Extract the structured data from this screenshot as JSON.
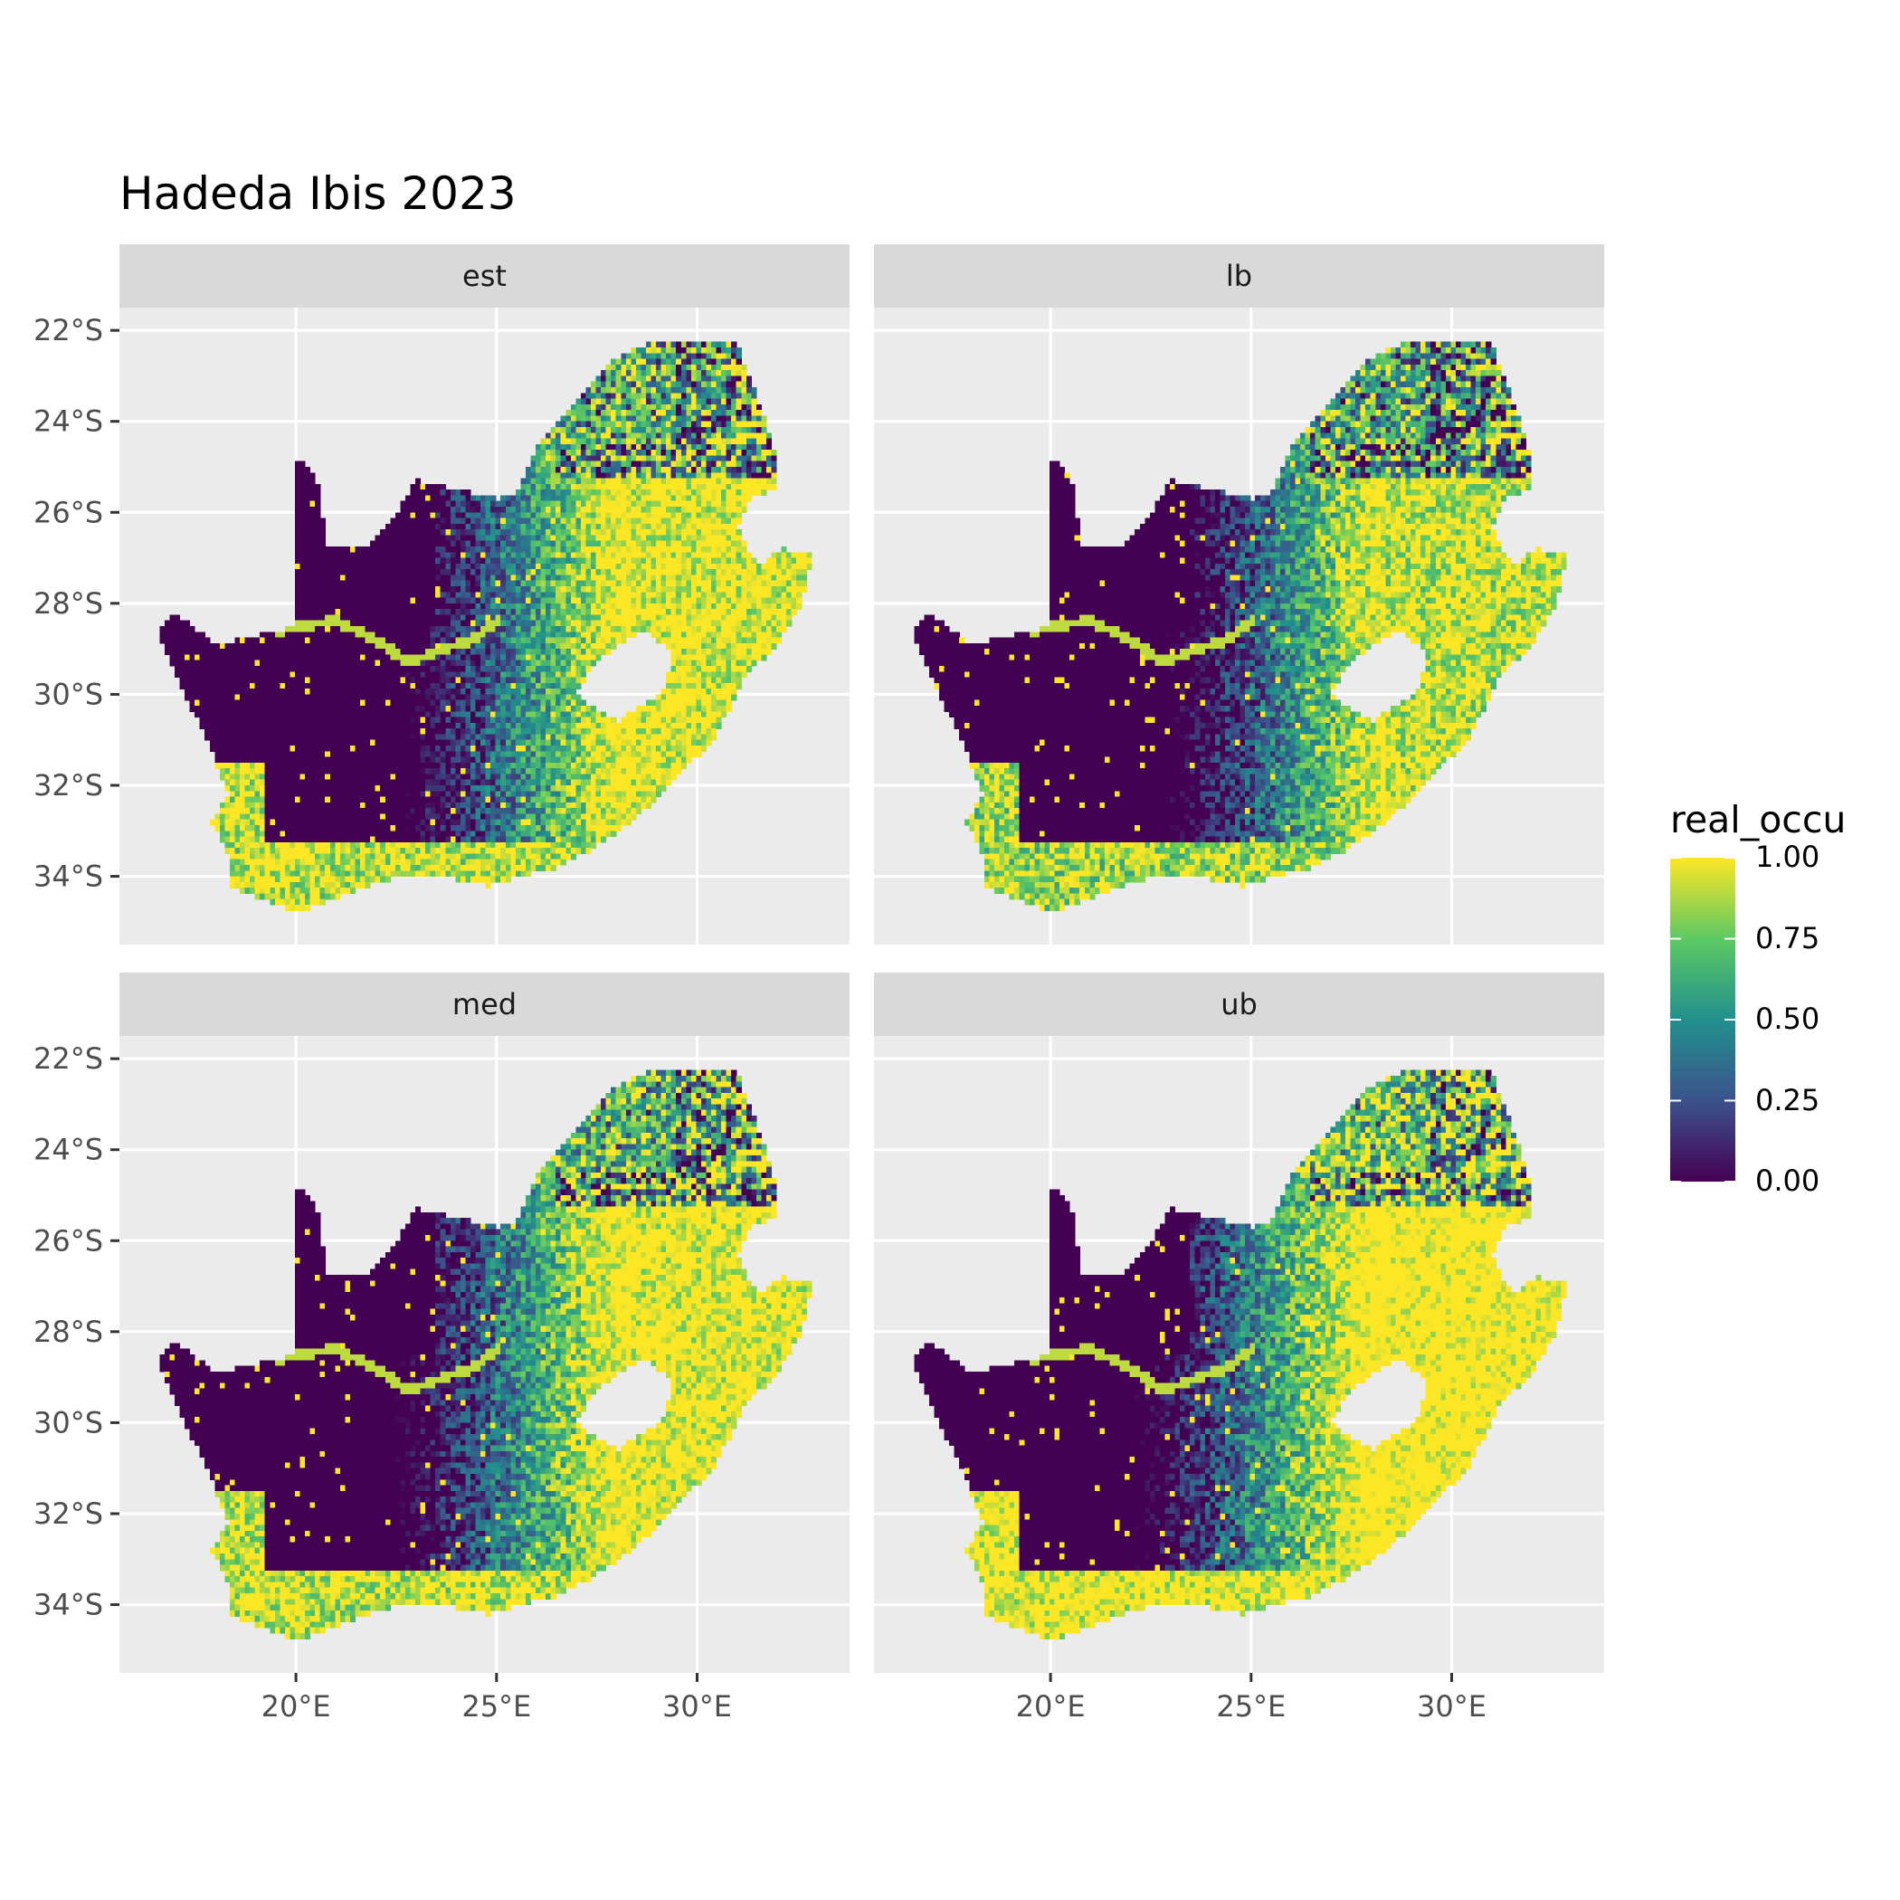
{
  "chart_data": {
    "type": "heatmap",
    "title": "Hadeda Ibis 2023",
    "facets": [
      "est",
      "lb",
      "med",
      "ub"
    ],
    "x_ticks": [
      "20°E",
      "25°E",
      "30°E"
    ],
    "y_ticks": [
      "22°S",
      "24°S",
      "26°S",
      "28°S",
      "30°S",
      "32°S",
      "34°S"
    ],
    "x_tick_values": [
      20,
      25,
      30
    ],
    "y_tick_values": [
      -22,
      -24,
      -26,
      -28,
      -30,
      -32,
      -34
    ],
    "xlim": [
      15.6,
      33.8
    ],
    "ylim": [
      -35.5,
      -21.5
    ],
    "grid": true,
    "legend": {
      "title": "real_occu",
      "position": "right",
      "labels": [
        "1.00",
        "0.75",
        "0.50",
        "0.25",
        "0.00"
      ],
      "values": [
        1.0,
        0.75,
        0.5,
        0.25,
        0.0
      ],
      "range": [
        0,
        1
      ],
      "palette": [
        "#440154",
        "#3b528b",
        "#21908d",
        "#5dc963",
        "#fde725"
      ]
    },
    "colors": {
      "panel_background": "#ebebeb",
      "strip_background": "#d9d9d9",
      "grid_line": "#ffffff",
      "axis_text": "#4d4d4d"
    },
    "map_outline": [
      [
        16.5,
        -28.6
      ],
      [
        17.0,
        -28.2
      ],
      [
        18.0,
        -28.9
      ],
      [
        19.0,
        -28.7
      ],
      [
        20.0,
        -28.5
      ],
      [
        20.0,
        -24.8
      ],
      [
        20.5,
        -25.2
      ],
      [
        20.8,
        -26.8
      ],
      [
        21.7,
        -26.8
      ],
      [
        22.5,
        -26.0
      ],
      [
        23.0,
        -25.3
      ],
      [
        24.0,
        -25.5
      ],
      [
        25.0,
        -25.7
      ],
      [
        25.5,
        -25.6
      ],
      [
        26.0,
        -24.6
      ],
      [
        27.0,
        -23.6
      ],
      [
        28.0,
        -22.6
      ],
      [
        29.0,
        -22.2
      ],
      [
        30.0,
        -22.3
      ],
      [
        31.0,
        -22.3
      ],
      [
        31.5,
        -23.5
      ],
      [
        31.9,
        -24.5
      ],
      [
        32.0,
        -25.5
      ],
      [
        31.3,
        -25.7
      ],
      [
        31.0,
        -26.3
      ],
      [
        31.5,
        -27.2
      ],
      [
        32.1,
        -26.8
      ],
      [
        32.9,
        -26.9
      ],
      [
        32.6,
        -28.0
      ],
      [
        32.0,
        -28.9
      ],
      [
        31.2,
        -29.6
      ],
      [
        30.4,
        -31.0
      ],
      [
        29.5,
        -31.8
      ],
      [
        28.5,
        -32.7
      ],
      [
        27.4,
        -33.4
      ],
      [
        26.5,
        -33.8
      ],
      [
        25.6,
        -34.0
      ],
      [
        24.8,
        -34.2
      ],
      [
        23.6,
        -34.0
      ],
      [
        22.5,
        -34.0
      ],
      [
        21.5,
        -34.3
      ],
      [
        20.0,
        -34.8
      ],
      [
        19.5,
        -34.6
      ],
      [
        18.8,
        -34.4
      ],
      [
        18.3,
        -34.2
      ],
      [
        18.3,
        -33.5
      ],
      [
        17.9,
        -32.8
      ],
      [
        18.3,
        -32.2
      ],
      [
        17.8,
        -31.0
      ],
      [
        17.1,
        -29.8
      ]
    ],
    "lesotho_outline": [
      [
        27.0,
        -29.9
      ],
      [
        27.5,
        -29.3
      ],
      [
        28.0,
        -28.9
      ],
      [
        28.7,
        -28.6
      ],
      [
        29.4,
        -29.1
      ],
      [
        29.2,
        -29.9
      ],
      [
        28.5,
        -30.3
      ],
      [
        28.0,
        -30.6
      ],
      [
        27.4,
        -30.3
      ]
    ],
    "orange_river": [
      [
        16.5,
        -28.6
      ],
      [
        17.4,
        -28.7
      ],
      [
        18.0,
        -28.9
      ],
      [
        19.0,
        -28.8
      ],
      [
        20.0,
        -28.5
      ],
      [
        21.0,
        -28.4
      ],
      [
        22.0,
        -28.8
      ],
      [
        22.8,
        -29.3
      ],
      [
        23.7,
        -29.0
      ],
      [
        24.4,
        -28.8
      ],
      [
        25.0,
        -28.4
      ]
    ]
  }
}
